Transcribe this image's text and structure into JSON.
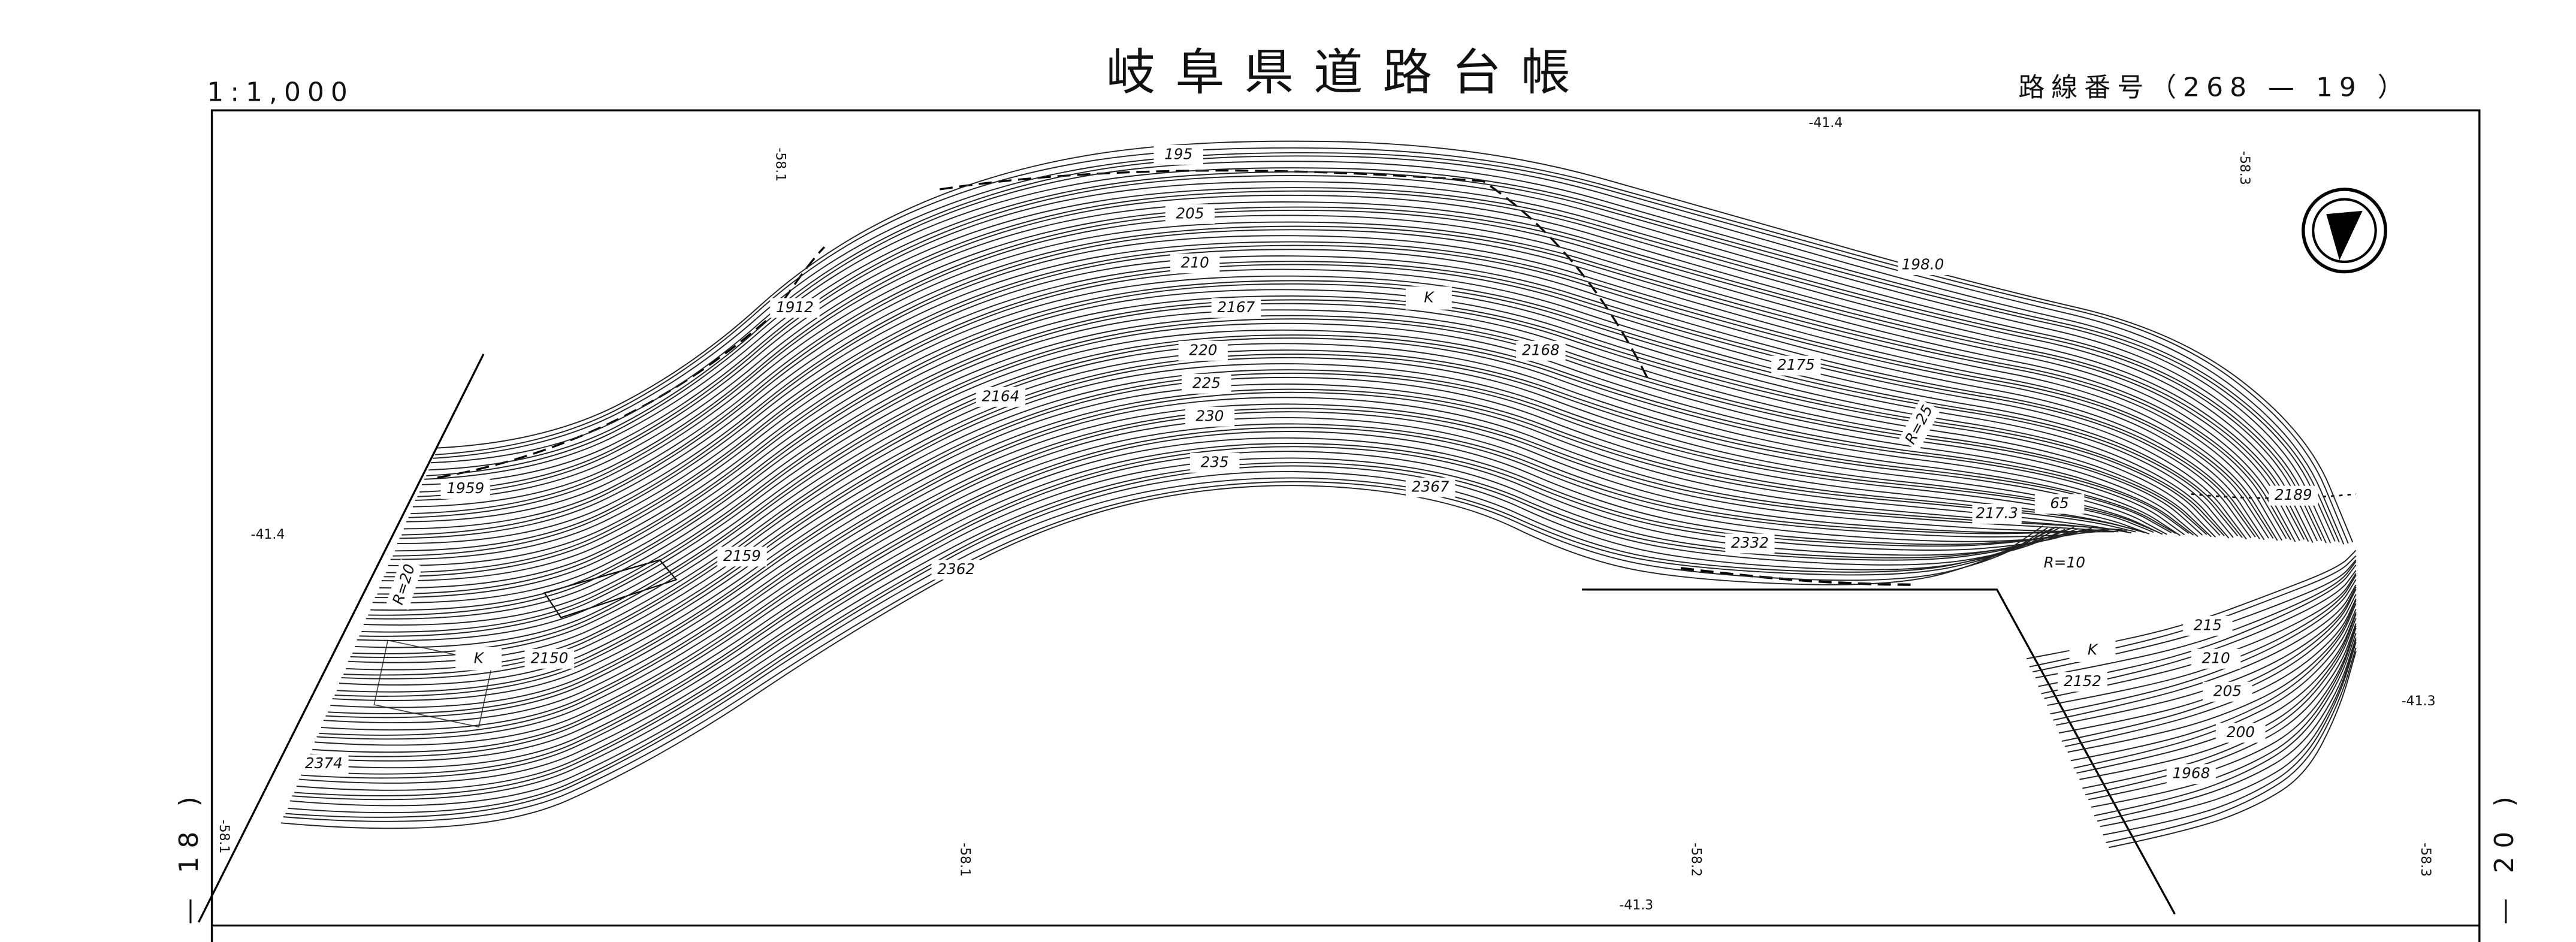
{
  "header": {
    "scale": "1:1,000",
    "title": "岐阜県道路台帳",
    "route": "路線番号（268 — 19 ）"
  },
  "side_labels": {
    "left": "— 18 )",
    "right": "— 20 )"
  },
  "grid_labels": [
    "-58.1",
    "-41.4",
    "-58.3",
    "-41.4",
    "-41.3",
    "-58.1",
    "-58.1",
    "-58.2",
    "-58.3",
    "-41.3"
  ],
  "contour_labels": [
    "195",
    "205",
    "210",
    "2167",
    "220",
    "225",
    "230",
    "235",
    "2367",
    "2362",
    "2164",
    "1912",
    "1959",
    "2159",
    "2150",
    "2374",
    "2168",
    "198.0",
    "2175",
    "2332",
    "217.3",
    "2189",
    "215",
    "210",
    "205",
    "200",
    "1968",
    "2152",
    "65"
  ],
  "notes": [
    "R=25",
    "R=20",
    "R=10",
    "K",
    "K",
    "K"
  ]
}
